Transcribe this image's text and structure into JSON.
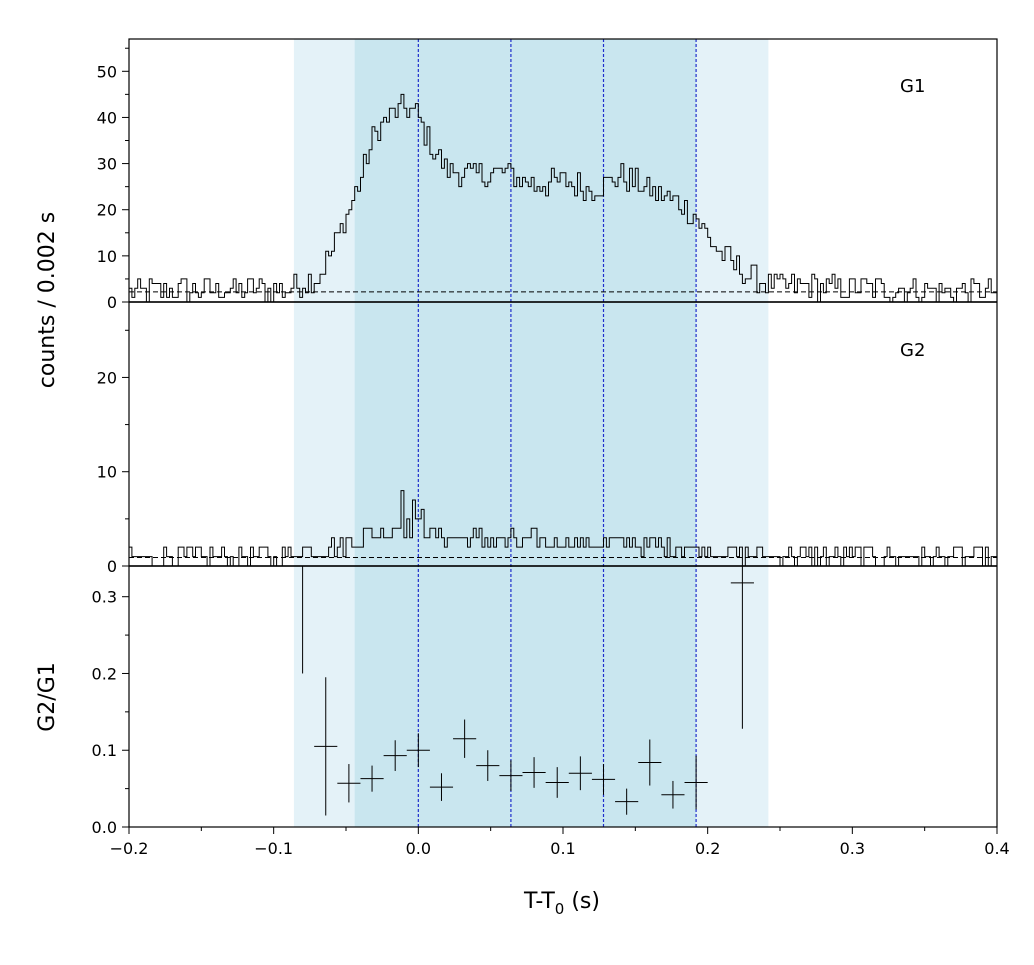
{
  "chart_data": {
    "type": "line",
    "xlim": [
      -0.2,
      0.4
    ],
    "xlabel": "T-T0 (s)",
    "xlabel_main": "T-T",
    "xlabel_sub": "0",
    "xlabel_tail": " (s)",
    "xticks": [
      -0.2,
      -0.1,
      0.0,
      0.1,
      0.2,
      0.3,
      0.4
    ],
    "xtick_labels": [
      "−0.2",
      "−0.1",
      "0.0",
      "0.1",
      "0.2",
      "0.3",
      "0.4"
    ],
    "shared_ylabel": "counts /  0.002 s",
    "bin_width": 0.002,
    "bands": {
      "outer": [
        -0.086,
        0.242
      ],
      "inner": [
        -0.044,
        0.192
      ],
      "outer_color": "#e4f2f8",
      "inner_color": "#c9e6ef"
    },
    "vlines": [
      0.0,
      0.064,
      0.128,
      0.192
    ],
    "vline_color": "#1f2ecc",
    "panels": [
      {
        "label": "G1",
        "ylim": [
          0,
          57
        ],
        "yticks": [
          0,
          10,
          20,
          30,
          40,
          50
        ],
        "ytick_labels": [
          "0",
          "10",
          "20",
          "30",
          "40",
          "50"
        ],
        "background_level": 2.2,
        "anchors": [
          [
            -0.2,
            2
          ],
          [
            -0.09,
            2.5
          ],
          [
            -0.07,
            5
          ],
          [
            -0.06,
            10
          ],
          [
            -0.05,
            18
          ],
          [
            -0.04,
            26
          ],
          [
            -0.03,
            36
          ],
          [
            -0.02,
            40
          ],
          [
            -0.01,
            42
          ],
          [
            0.0,
            40
          ],
          [
            0.01,
            33
          ],
          [
            0.02,
            28
          ],
          [
            0.04,
            27
          ],
          [
            0.06,
            28
          ],
          [
            0.08,
            25
          ],
          [
            0.1,
            26
          ],
          [
            0.12,
            24
          ],
          [
            0.14,
            27
          ],
          [
            0.16,
            24
          ],
          [
            0.18,
            21
          ],
          [
            0.19,
            19
          ],
          [
            0.2,
            14
          ],
          [
            0.21,
            10
          ],
          [
            0.23,
            5
          ],
          [
            0.25,
            3
          ],
          [
            0.4,
            2
          ]
        ],
        "noise": 6
      },
      {
        "label": "G2",
        "ylim": [
          0,
          28
        ],
        "yticks": [
          0,
          10,
          20
        ],
        "ytick_labels": [
          "0",
          "10",
          "20"
        ],
        "background_level": 0.9,
        "anchors": [
          [
            -0.2,
            0.8
          ],
          [
            -0.09,
            0.9
          ],
          [
            -0.07,
            1.8
          ],
          [
            -0.05,
            2.3
          ],
          [
            -0.03,
            3.4
          ],
          [
            -0.01,
            4
          ],
          [
            0.0,
            4.3
          ],
          [
            0.01,
            3
          ],
          [
            0.05,
            2.6
          ],
          [
            0.1,
            2.4
          ],
          [
            0.15,
            2.3
          ],
          [
            0.19,
            1.8
          ],
          [
            0.22,
            1.2
          ],
          [
            0.25,
            1
          ],
          [
            0.4,
            0.8
          ]
        ],
        "noise": 2,
        "spikes": [
          [
            -0.012,
            8
          ],
          [
            -0.004,
            7
          ],
          [
            0.0,
            10
          ],
          [
            0.004,
            6
          ]
        ]
      }
    ],
    "ratio_panel": {
      "ylabel": "G2/G1",
      "ylim": [
        0,
        0.34
      ],
      "yticks": [
        0.0,
        0.1,
        0.2,
        0.3
      ],
      "ytick_labels": [
        "0.0",
        "0.1",
        "0.2",
        "0.3"
      ],
      "points": [
        {
          "x": -0.08,
          "xerr": 0.0,
          "y": 0.32,
          "yerr_lo": 0.12,
          "yerr_hi": 0.07
        },
        {
          "x": -0.064,
          "xerr": 0.008,
          "y": 0.105,
          "yerr_lo": 0.09,
          "yerr_hi": 0.09
        },
        {
          "x": -0.048,
          "xerr": 0.008,
          "y": 0.057,
          "yerr_lo": 0.025,
          "yerr_hi": 0.025
        },
        {
          "x": -0.032,
          "xerr": 0.008,
          "y": 0.063,
          "yerr_lo": 0.017,
          "yerr_hi": 0.017
        },
        {
          "x": -0.016,
          "xerr": 0.008,
          "y": 0.093,
          "yerr_lo": 0.02,
          "yerr_hi": 0.02
        },
        {
          "x": 0.0,
          "xerr": 0.008,
          "y": 0.1,
          "yerr_lo": 0.022,
          "yerr_hi": 0.022
        },
        {
          "x": 0.016,
          "xerr": 0.008,
          "y": 0.052,
          "yerr_lo": 0.018,
          "yerr_hi": 0.018
        },
        {
          "x": 0.032,
          "xerr": 0.008,
          "y": 0.115,
          "yerr_lo": 0.025,
          "yerr_hi": 0.025
        },
        {
          "x": 0.048,
          "xerr": 0.008,
          "y": 0.08,
          "yerr_lo": 0.02,
          "yerr_hi": 0.02
        },
        {
          "x": 0.064,
          "xerr": 0.008,
          "y": 0.067,
          "yerr_lo": 0.02,
          "yerr_hi": 0.02
        },
        {
          "x": 0.08,
          "xerr": 0.008,
          "y": 0.071,
          "yerr_lo": 0.02,
          "yerr_hi": 0.02
        },
        {
          "x": 0.096,
          "xerr": 0.008,
          "y": 0.058,
          "yerr_lo": 0.02,
          "yerr_hi": 0.02
        },
        {
          "x": 0.112,
          "xerr": 0.008,
          "y": 0.07,
          "yerr_lo": 0.022,
          "yerr_hi": 0.022
        },
        {
          "x": 0.128,
          "xerr": 0.008,
          "y": 0.062,
          "yerr_lo": 0.02,
          "yerr_hi": 0.02
        },
        {
          "x": 0.144,
          "xerr": 0.008,
          "y": 0.033,
          "yerr_lo": 0.017,
          "yerr_hi": 0.017
        },
        {
          "x": 0.16,
          "xerr": 0.008,
          "y": 0.084,
          "yerr_lo": 0.03,
          "yerr_hi": 0.03
        },
        {
          "x": 0.176,
          "xerr": 0.008,
          "y": 0.042,
          "yerr_lo": 0.018,
          "yerr_hi": 0.018
        },
        {
          "x": 0.192,
          "xerr": 0.008,
          "y": 0.058,
          "yerr_lo": 0.035,
          "yerr_hi": 0.035
        },
        {
          "x": 0.224,
          "xerr": 0.008,
          "y": 0.318,
          "yerr_lo": 0.19,
          "yerr_hi": 0.06
        }
      ]
    }
  }
}
